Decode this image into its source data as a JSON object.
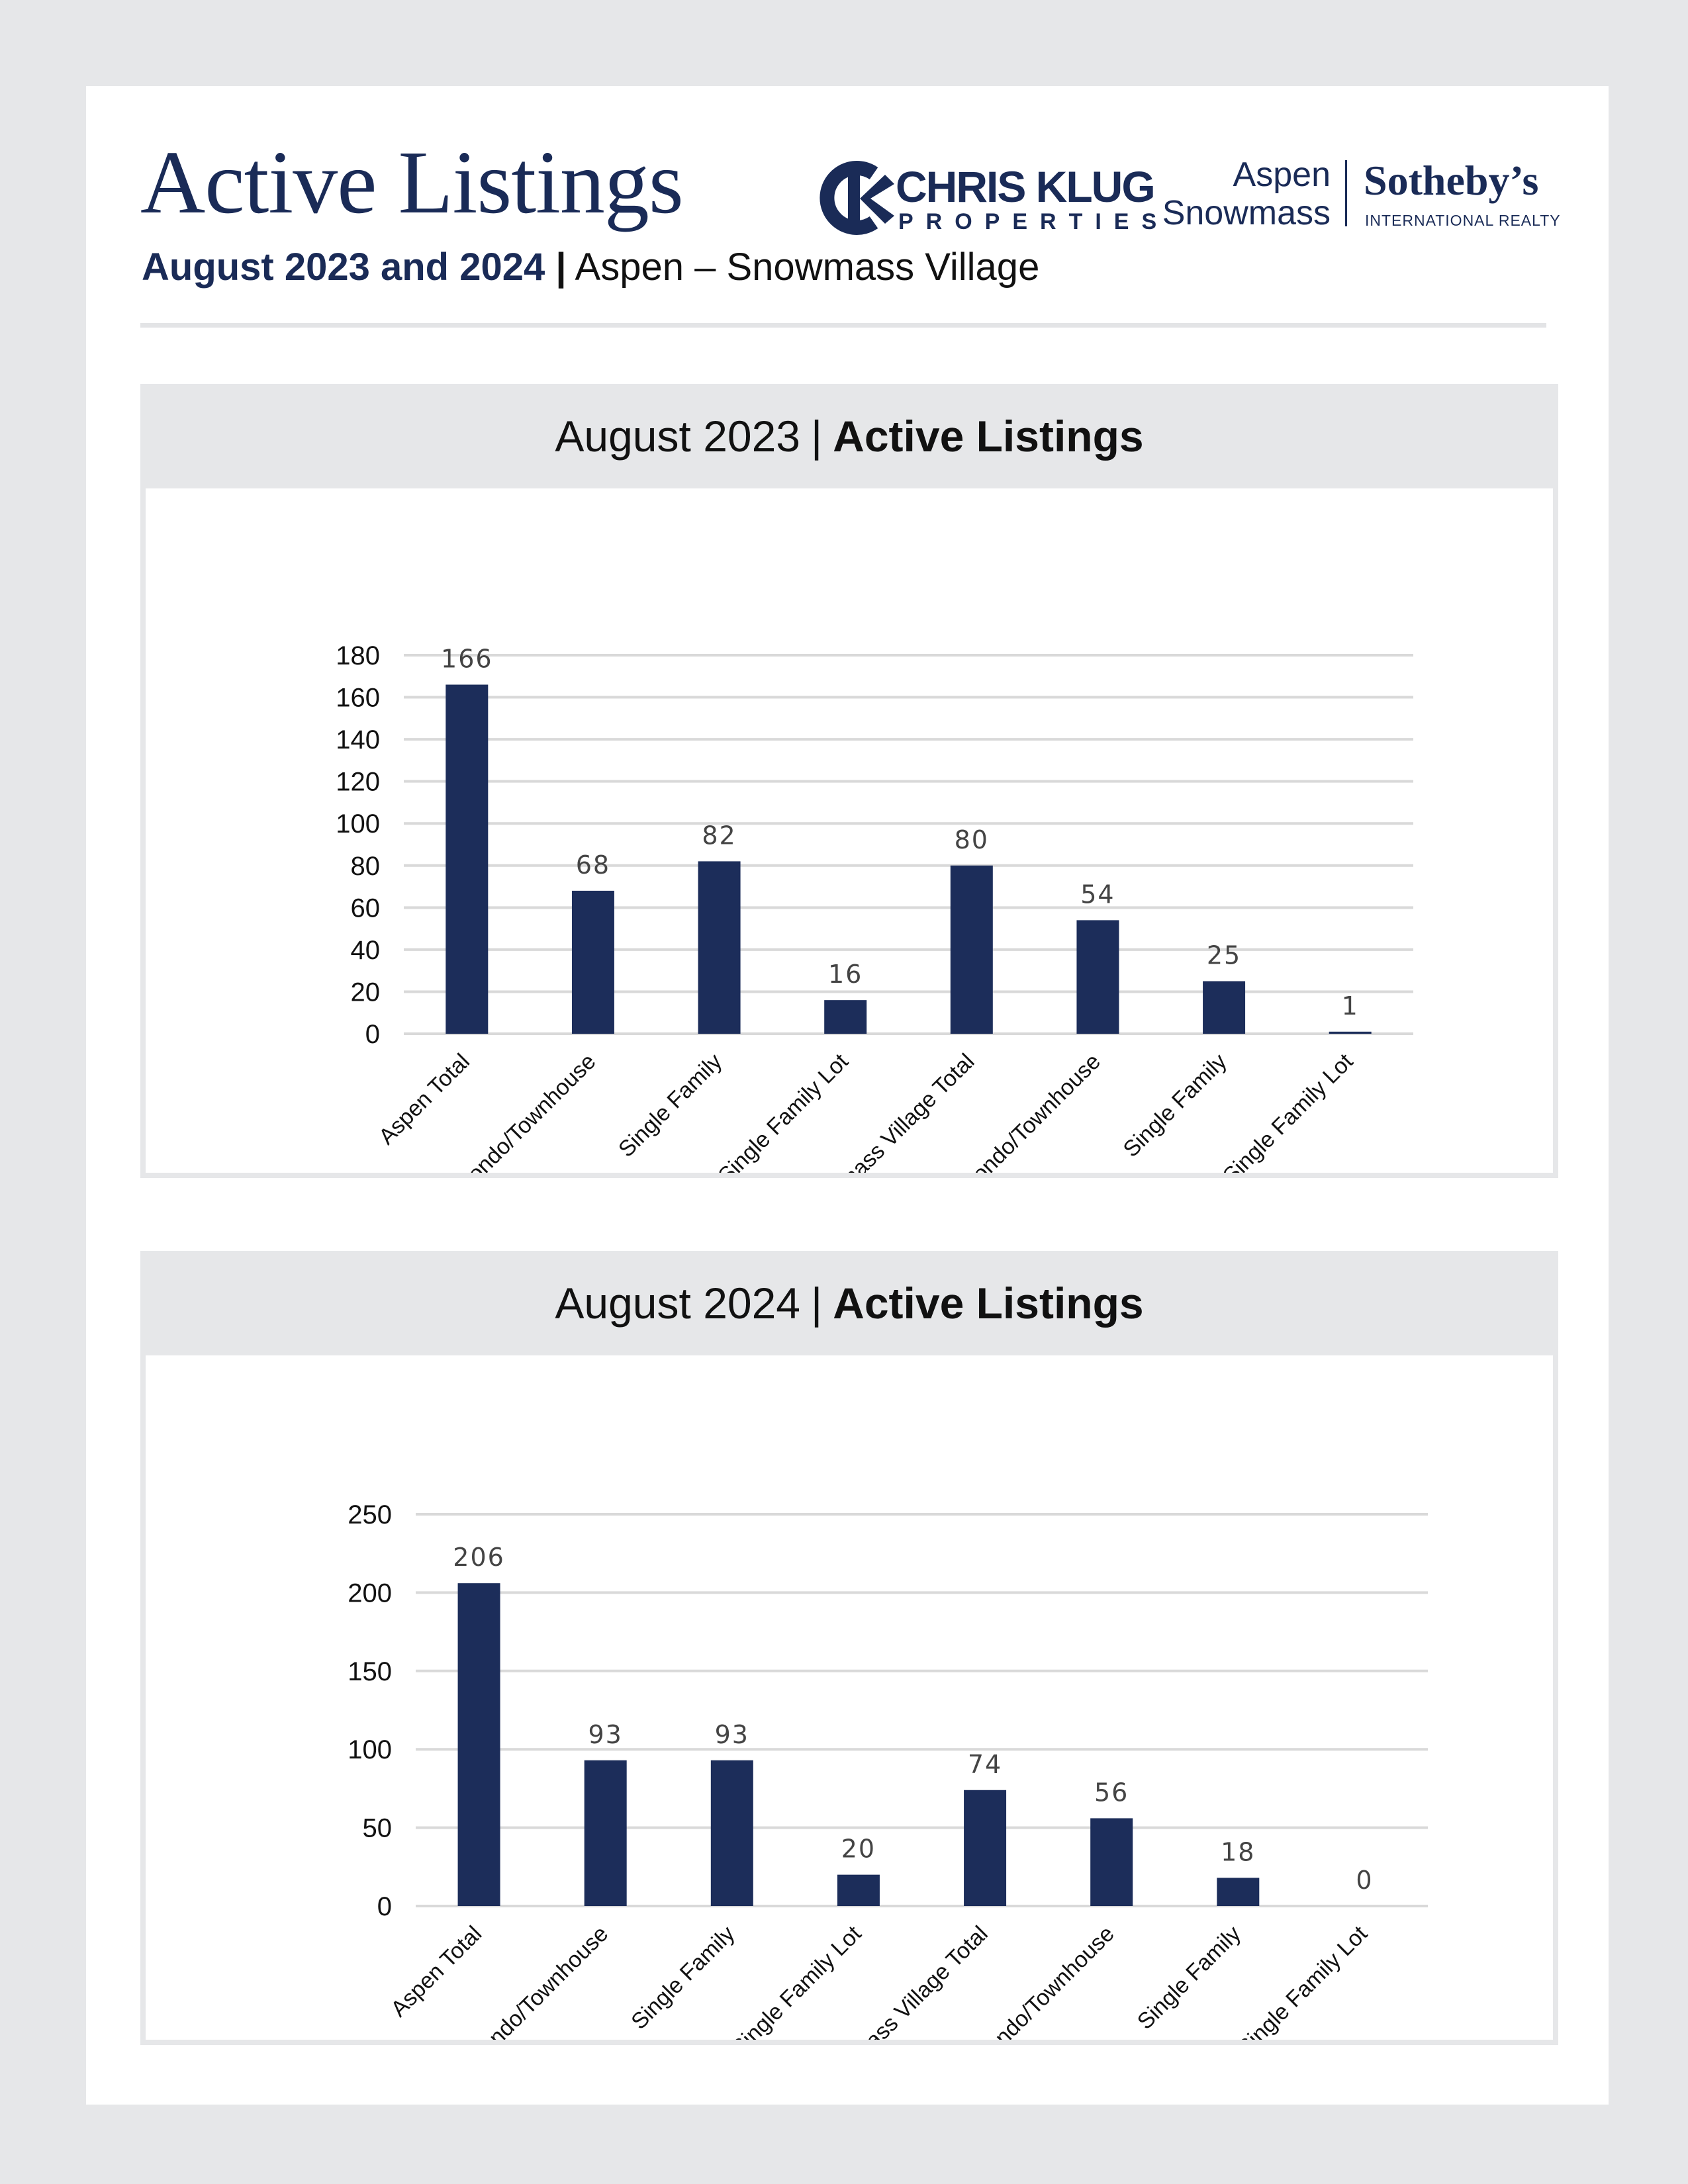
{
  "header": {
    "title": "Active Listings",
    "subtitle_bold": "August 2023 and 2024",
    "subtitle_sep": "|",
    "subtitle_place": "Aspen – Snowmass Village"
  },
  "logos": {
    "ck_name": "CHRIS KLUG",
    "ck_properties": "PROPERTIES",
    "ss_aspen": "Aspen",
    "ss_snowmass": "Snowmass",
    "ss_sothebys": "Sotheby’s",
    "ss_intl": "INTERNATIONAL REALTY"
  },
  "colors": {
    "bar": "#1c2d5a",
    "navy": "#1a2b57",
    "grid": "#d9d9d9"
  },
  "panels": [
    {
      "title_light": "August 2023",
      "sep": "|",
      "title_bold": "Active Listings"
    },
    {
      "title_light": "August 2024",
      "sep": "|",
      "title_bold": "Active Listings"
    }
  ],
  "chart_data": [
    {
      "type": "bar",
      "title": "August 2023 | Active Listings",
      "categories": [
        "Aspen Total",
        "Condo/Townhouse",
        "Single Family",
        "Single Family Lot",
        "Snowmass Village Total",
        "Condo/Townhouse",
        "Single Family",
        "Single Family Lot"
      ],
      "values": [
        166,
        68,
        82,
        16,
        80,
        54,
        25,
        1
      ],
      "ylim": [
        0,
        180
      ],
      "yticks": [
        0,
        20,
        40,
        60,
        80,
        100,
        120,
        140,
        160,
        180
      ],
      "grid": true,
      "data_labels": true
    },
    {
      "type": "bar",
      "title": "August 2024 | Active Listings",
      "categories": [
        "Aspen Total",
        "Condo/Townhouse",
        "Single Family",
        "Single Family Lot",
        "Snowmass Village Total",
        "Condo/Townhouse",
        "Single Family",
        "Single Family Lot"
      ],
      "values": [
        206,
        93,
        93,
        20,
        74,
        56,
        18,
        0
      ],
      "ylim": [
        0,
        250
      ],
      "yticks": [
        0,
        50,
        100,
        150,
        200,
        250
      ],
      "grid": true,
      "data_labels": true
    }
  ]
}
